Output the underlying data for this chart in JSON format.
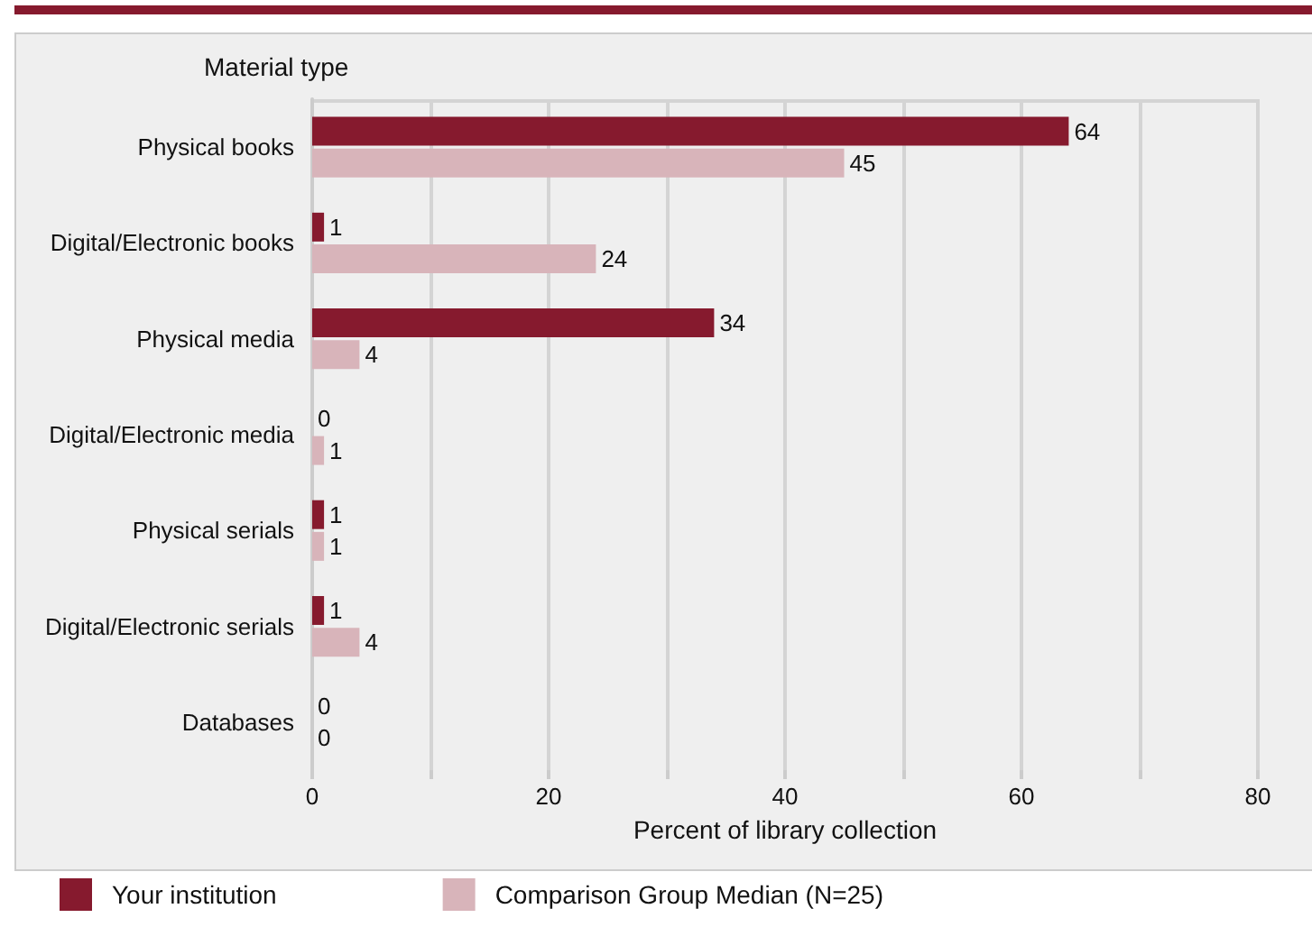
{
  "chart_data": {
    "type": "bar",
    "orientation": "horizontal",
    "ylabel": "Material type",
    "xlabel": "Percent of library collection",
    "categories": [
      "Physical books",
      "Digital/Electronic books",
      "Physical media",
      "Digital/Electronic media",
      "Physical serials",
      "Digital/Electronic serials",
      "Databases"
    ],
    "series": [
      {
        "name": "Your institution",
        "color": "#861a2e",
        "values": [
          64,
          1,
          34,
          0,
          1,
          1,
          0
        ]
      },
      {
        "name": "Comparison Group Median (N=25)",
        "color": "#d8b4ba",
        "values": [
          45,
          24,
          4,
          1,
          1,
          4,
          0
        ]
      }
    ],
    "xlim": [
      0,
      80
    ],
    "xticks": [
      0,
      {
        "value": 10,
        "label": null
      },
      20,
      {
        "value": 30,
        "label": null
      },
      40,
      {
        "value": 50,
        "label": null
      },
      60,
      {
        "value": 70,
        "label": null
      },
      80
    ],
    "grid": "x",
    "data_labels": true,
    "legend": "bottom left"
  }
}
